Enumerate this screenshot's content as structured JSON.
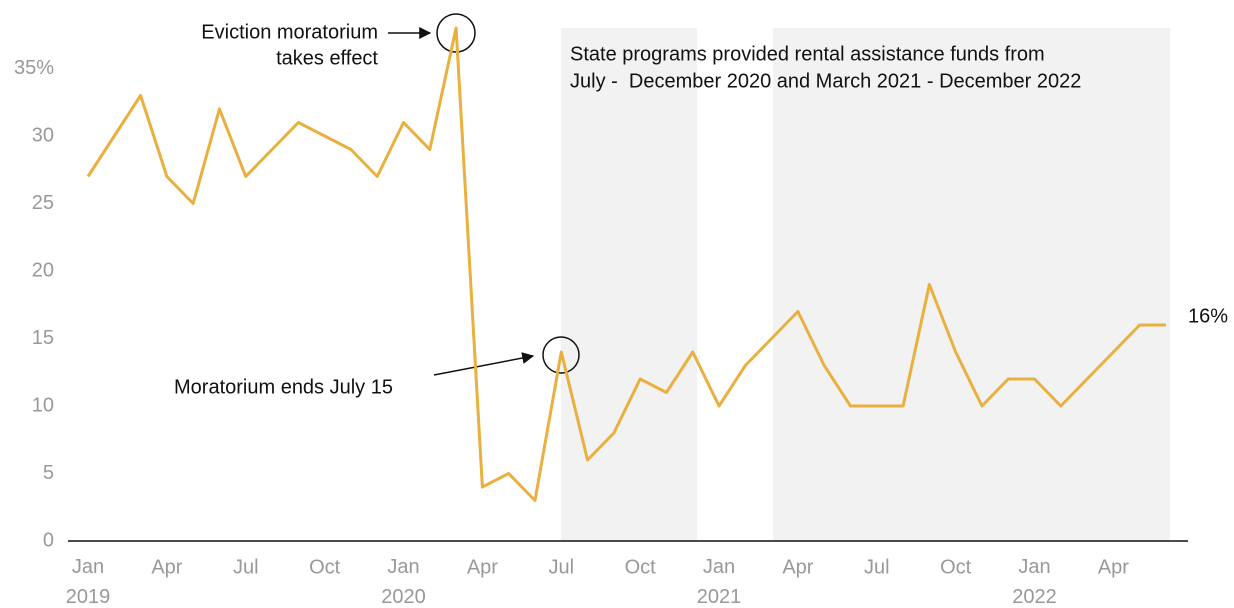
{
  "chart_data": {
    "type": "line",
    "categories": [
      "Jan 2019",
      null,
      null,
      "Apr",
      null,
      null,
      "Jul",
      null,
      null,
      "Oct",
      null,
      null,
      "Jan 2020",
      null,
      null,
      "Apr",
      null,
      null,
      "Jul",
      null,
      null,
      "Oct",
      null,
      null,
      "Jan 2021",
      null,
      null,
      "Apr",
      null,
      null,
      "Jul",
      null,
      null,
      "Oct",
      null,
      null,
      "Jan 2022",
      null,
      null,
      "Apr",
      null,
      null
    ],
    "series": [
      {
        "color": "#e9b040",
        "values": [
          27,
          30,
          33,
          27,
          25,
          32,
          27,
          29,
          31,
          30,
          29,
          27,
          31,
          29,
          38,
          4,
          5,
          3,
          14,
          6,
          8,
          12,
          11,
          14,
          10,
          13,
          15,
          17,
          13,
          10,
          10,
          10,
          19,
          14,
          10,
          12,
          12,
          10,
          12,
          14,
          16,
          16
        ],
        "value_labels": [
          null,
          null,
          null,
          null,
          null,
          null,
          null,
          null,
          null,
          null,
          null,
          null,
          null,
          null,
          null,
          null,
          null,
          null,
          null,
          null,
          null,
          null,
          null,
          null,
          null,
          null,
          null,
          null,
          null,
          null,
          null,
          null,
          null,
          null,
          null,
          null,
          null,
          null,
          null,
          null,
          null,
          "16%"
        ]
      }
    ],
    "ylim": [
      0,
      38
    ],
    "yticks": [
      0,
      5,
      10,
      15,
      20,
      25,
      30,
      {
        "value": 35,
        "label": "35%"
      }
    ],
    "annotations": [
      [
        "Eviction moratorium",
        "takes effect"
      ],
      [
        "Moratorium ends July 15"
      ]
    ],
    "shaded_note": [
      "State programs provided rental assistance funds from",
      "July -  December 2020 and March 2021 - December 2022"
    ]
  }
}
